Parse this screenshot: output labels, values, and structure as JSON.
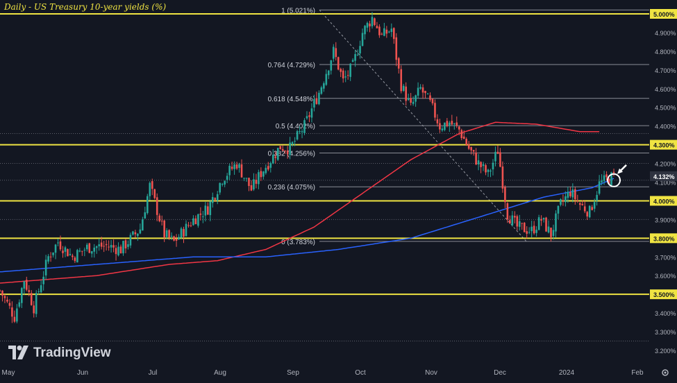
{
  "chart_data": {
    "type": "candlestick",
    "title": "Daily - US Treasury 10-year yields (%)",
    "watermark": "TradingView",
    "colors": {
      "up": "#26a69a",
      "down": "#ef5350",
      "yellow": "#f0e442",
      "ma_red": "#f23645",
      "ma_blue": "#2962ff",
      "background": "#131722"
    },
    "y_axis": {
      "min": 3.2,
      "max": 5.05,
      "ticks": [
        "5.000%",
        "4.900%",
        "4.800%",
        "4.700%",
        "4.600%",
        "4.500%",
        "4.400%",
        "4.300%",
        "4.200%",
        "4.100%",
        "4.000%",
        "3.900%",
        "3.800%",
        "3.700%",
        "3.600%",
        "3.500%",
        "3.400%",
        "3.300%",
        "3.200%"
      ]
    },
    "x_axis": {
      "ticks": [
        "May",
        "Jun",
        "Jul",
        "Aug",
        "Sep",
        "Oct",
        "Nov",
        "Dec",
        "2024",
        "Feb"
      ]
    },
    "current_price_label": "4.132%",
    "horizontal_levels": [
      {
        "value": 5.0,
        "label": "5.000%"
      },
      {
        "value": 4.3,
        "label": "4.300%"
      },
      {
        "value": 4.0,
        "label": "4.000%"
      },
      {
        "value": 3.8,
        "label": "3.800%"
      },
      {
        "value": 3.5,
        "label": "3.500%"
      }
    ],
    "fib_levels": [
      {
        "value": 5.021,
        "label": "1 (5.021%)"
      },
      {
        "value": 4.729,
        "label": "0.764 (4.729%)"
      },
      {
        "value": 4.548,
        "label": "0.618 (4.548%)"
      },
      {
        "value": 4.402,
        "label": "0.5 (4.402%)"
      },
      {
        "value": 4.256,
        "label": "0.382 (4.256%)"
      },
      {
        "value": 4.075,
        "label": "0.236 (4.075%)"
      },
      {
        "value": 3.783,
        "label": "0 (3.783%)"
      }
    ],
    "dotted_levels": [
      4.36,
      4.2,
      4.11,
      3.9,
      3.25
    ],
    "candle_anchors": [
      [
        0,
        3.52
      ],
      [
        6,
        3.38
      ],
      [
        10,
        3.58
      ],
      [
        14,
        3.43
      ],
      [
        20,
        3.7
      ],
      [
        24,
        3.78
      ],
      [
        30,
        3.7
      ],
      [
        36,
        3.75
      ],
      [
        44,
        3.76
      ],
      [
        50,
        3.74
      ],
      [
        58,
        3.85
      ],
      [
        62,
        4.08
      ],
      [
        68,
        3.82
      ],
      [
        72,
        3.78
      ],
      [
        80,
        3.9
      ],
      [
        86,
        3.96
      ],
      [
        92,
        4.12
      ],
      [
        98,
        4.2
      ],
      [
        104,
        4.06
      ],
      [
        108,
        4.15
      ],
      [
        116,
        4.29
      ],
      [
        120,
        4.28
      ],
      [
        126,
        4.4
      ],
      [
        132,
        4.58
      ],
      [
        138,
        4.8
      ],
      [
        142,
        4.64
      ],
      [
        146,
        4.72
      ],
      [
        150,
        4.9
      ],
      [
        154,
        4.98
      ],
      [
        158,
        4.88
      ],
      [
        162,
        4.92
      ],
      [
        166,
        4.62
      ],
      [
        170,
        4.5
      ],
      [
        174,
        4.6
      ],
      [
        178,
        4.52
      ],
      [
        182,
        4.4
      ],
      [
        186,
        4.42
      ],
      [
        190,
        4.38
      ],
      [
        194,
        4.28
      ],
      [
        198,
        4.2
      ],
      [
        202,
        4.14
      ],
      [
        206,
        4.27
      ],
      [
        210,
        3.93
      ],
      [
        214,
        3.86
      ],
      [
        220,
        3.84
      ],
      [
        224,
        3.9
      ],
      [
        228,
        3.82
      ],
      [
        232,
        3.98
      ],
      [
        236,
        4.05
      ],
      [
        240,
        3.98
      ],
      [
        244,
        3.94
      ],
      [
        248,
        4.09
      ],
      [
        252,
        4.12
      ],
      [
        254,
        4.13
      ]
    ],
    "ma_200_anchors": [
      [
        0,
        3.62
      ],
      [
        40,
        3.66
      ],
      [
        80,
        3.7
      ],
      [
        110,
        3.7
      ],
      [
        140,
        3.74
      ],
      [
        170,
        3.8
      ],
      [
        200,
        3.92
      ],
      [
        225,
        4.02
      ],
      [
        245,
        4.07
      ],
      [
        254,
        4.12
      ]
    ],
    "ma_100_anchors": [
      [
        0,
        3.56
      ],
      [
        40,
        3.6
      ],
      [
        70,
        3.66
      ],
      [
        90,
        3.68
      ],
      [
        110,
        3.74
      ],
      [
        130,
        3.86
      ],
      [
        150,
        4.04
      ],
      [
        170,
        4.22
      ],
      [
        190,
        4.36
      ],
      [
        205,
        4.42
      ],
      [
        222,
        4.41
      ],
      [
        240,
        4.37
      ],
      [
        248,
        4.37
      ]
    ]
  }
}
